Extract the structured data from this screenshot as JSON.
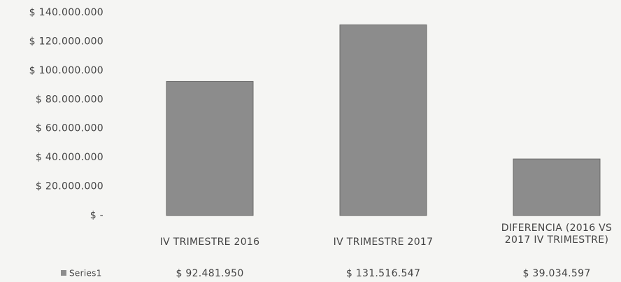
{
  "chart_data": {
    "type": "bar",
    "categories": [
      "IV TRIMESTRE 2016",
      "IV TRIMESTRE 2017",
      "DIFERENCIA (2016 VS 2017 IV TRIMESTRE)"
    ],
    "series": [
      {
        "name": "Series1",
        "color": "#8c8c8c",
        "values": [
          92481950,
          131516547,
          39034597
        ],
        "value_labels": [
          "$ 92.481.950",
          "$ 131.516.547",
          "$ 39.034.597"
        ]
      }
    ],
    "ylim": [
      0,
      140000000
    ],
    "yticks": [
      {
        "value": 0,
        "label": "$ -"
      },
      {
        "value": 20000000,
        "label": "$ 20.000.000"
      },
      {
        "value": 40000000,
        "label": "$ 40.000.000"
      },
      {
        "value": 60000000,
        "label": "$ 60.000.000"
      },
      {
        "value": 80000000,
        "label": "$ 80.000.000"
      },
      {
        "value": 100000000,
        "label": "$ 100.000.000"
      },
      {
        "value": 120000000,
        "label": "$ 120.000.000"
      },
      {
        "value": 140000000,
        "label": "$ 140.000.000"
      }
    ],
    "grid": false
  }
}
